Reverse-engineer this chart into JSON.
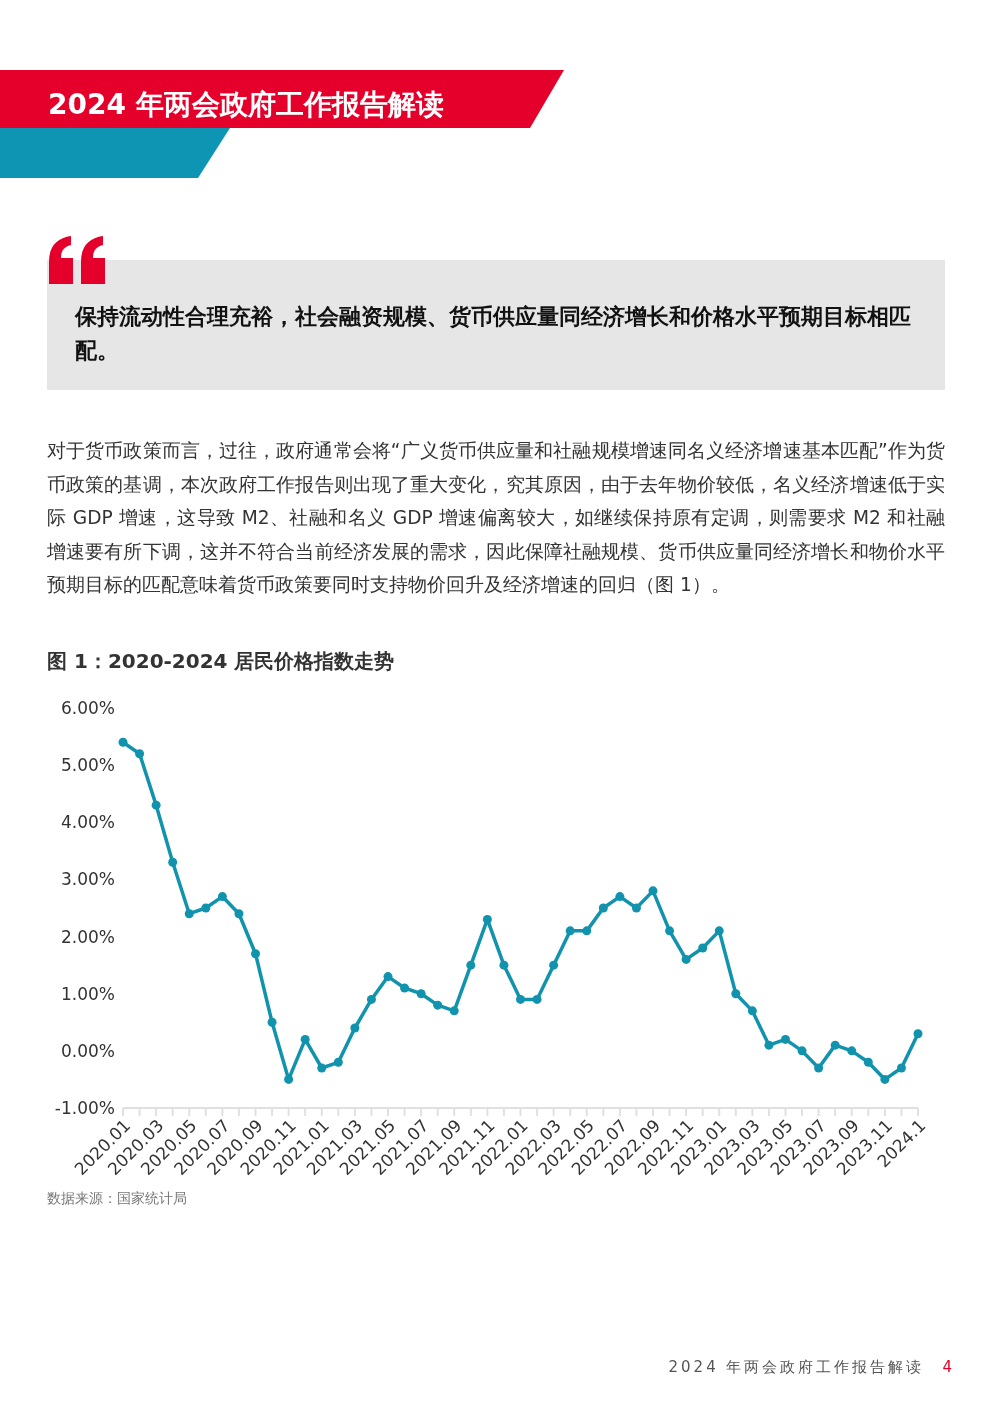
{
  "chart_data": {
    "type": "line",
    "title": "图 1：2020-2024 居民价格指数走势",
    "annotations": [
      "2024 年两会政府工作报告解读",
      "保持流动性合理充裕，社会融资规模、货币供应量同经济增长和价格水平预期目标相匹配。",
      "对于货币政策而言，过往，政府通常会将“广义货币供应量和社融规模增速同名义经济增速基本匹配”作为货币政策的基调，本次政府工作报告则出现了重大变化，究其原因，由于去年物价较低，名义经济增速低于实际 GDP 增速，这导致 M2、社融和名义 GDP 增速偏离较大，如继续保持原有定调，则需要求 M2 和社融增速要有所下调，这并不符合当前经济发展的需求，因此保障社融规模、货币供应量同经济增长和物价水平预期目标的匹配意味着货币政策要同时支持物价回升及经济增速的回归（图 1）。",
      "数据来源：国家统计局",
      "2024 年两会政府工作报告解读",
      "4"
    ],
    "categories": [
      "2020.01",
      null,
      "2020.03",
      null,
      "2020.05",
      null,
      "2020.07",
      null,
      "2020.09",
      null,
      "2020.11",
      null,
      "2021.01",
      null,
      "2021.03",
      null,
      "2021.05",
      null,
      "2021.07",
      null,
      "2021.09",
      null,
      "2021.11",
      null,
      "2022.01",
      null,
      "2022.03",
      null,
      "2022.05",
      null,
      "2022.07",
      null,
      "2022.09",
      null,
      "2022.11",
      null,
      "2023.01",
      null,
      "2023.03",
      null,
      "2023.05",
      null,
      "2023.07",
      null,
      "2023.09",
      null,
      "2023.11",
      null,
      "2024.1"
    ],
    "series": [
      {
        "color": "#1193ae",
        "values": [
          5.4,
          5.2,
          4.3,
          3.3,
          2.4,
          2.5,
          2.7,
          2.4,
          1.7,
          0.5,
          -0.5,
          0.2,
          -0.3,
          -0.2,
          0.4,
          0.9,
          1.3,
          1.1,
          1.0,
          0.8,
          0.7,
          1.5,
          2.3,
          1.5,
          0.9,
          0.9,
          1.5,
          2.1,
          2.1,
          2.5,
          2.7,
          2.5,
          2.8,
          2.1,
          1.6,
          1.8,
          2.1,
          1.0,
          0.7,
          0.1,
          0.2,
          0.0,
          -0.3,
          0.1,
          0.0,
          -0.2,
          -0.5,
          -0.3,
          0.3
        ]
      }
    ],
    "ylim": [
      -1,
      6
    ],
    "yticks": [
      {
        "value": -1,
        "label": "-1.00%"
      },
      {
        "value": 0,
        "label": "0.00%"
      },
      {
        "value": 1,
        "label": "1.00%"
      },
      {
        "value": 2,
        "label": "2.00%"
      },
      {
        "value": 3,
        "label": "3.00%"
      },
      {
        "value": 4,
        "label": "4.00%"
      },
      {
        "value": 5,
        "label": "5.00%"
      },
      {
        "value": 6,
        "label": "6.00%"
      }
    ],
    "marker": "circle",
    "line_style": "solid"
  }
}
